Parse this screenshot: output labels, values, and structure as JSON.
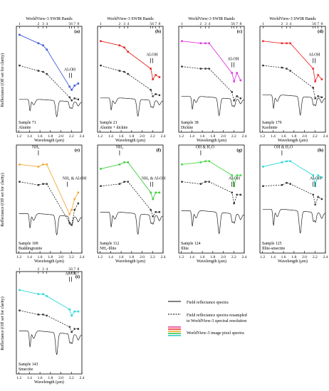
{
  "figure": {
    "ylabel": "Reflectance (Off set for clarity)",
    "xlabel": "Wavelength (μm)",
    "top_axis_title": "WorldView-3 SWIR Bands",
    "x_ticks": [
      "1.2",
      "1.4",
      "1.6",
      "1.8",
      "2.0",
      "2.2",
      "2.4"
    ],
    "band_labels": [
      "1",
      "2",
      "3",
      "4",
      "5",
      "6",
      "7",
      "8"
    ],
    "band_centers": [
      1.21,
      1.57,
      1.66,
      1.73,
      2.165,
      2.205,
      2.26,
      2.33
    ]
  },
  "legend": {
    "field": "Field reflectance spectra",
    "resampled_line1": "Field reflectance spectra resampled",
    "resampled_line2": "to WorldView-3 spectral resolution",
    "pixel": "WorldView-3 image pixel spectra",
    "pixel_colors": [
      "#e8318a",
      "#e82020",
      "#f0a020",
      "#30c030",
      "#20c8c8"
    ]
  },
  "chart_data": [
    {
      "type": "line",
      "panel": "(a)",
      "sample": "Sample 71",
      "mineral": "Alunite",
      "color": "#3f5bd6",
      "annotations": [
        {
          "text": "Al-OH",
          "x": 2.17,
          "marker_x": [
            2.165,
            2.205
          ]
        }
      ],
      "x": [
        1.21,
        1.57,
        1.66,
        1.73,
        2.165,
        2.205,
        2.26,
        2.33
      ],
      "series": [
        {
          "name": "WorldView-3 image pixel spectra",
          "values": [
            0.92,
            0.84,
            0.82,
            0.78,
            0.43,
            0.4,
            0.44,
            0.46
          ]
        },
        {
          "name": "Field reflectance spectra resampled",
          "values": [
            0.63,
            0.58,
            0.57,
            0.55,
            0.33,
            0.3,
            0.32,
            0.31
          ]
        }
      ]
    },
    {
      "type": "line",
      "panel": "(b)",
      "sample": "Sample 21",
      "mineral": "Alunite + dickite",
      "color": "#e02a20",
      "annotations": [
        {
          "text": "Al-OH",
          "x": 2.19,
          "marker_x": [
            2.165,
            2.205
          ]
        }
      ],
      "x": [
        1.21,
        1.57,
        1.66,
        1.73,
        2.165,
        2.205,
        2.26,
        2.33
      ],
      "series": [
        {
          "name": "WorldView-3 image pixel spectra",
          "values": [
            0.86,
            0.82,
            0.8,
            0.76,
            0.6,
            0.5,
            0.54,
            0.52
          ]
        },
        {
          "name": "Field reflectance spectra resampled",
          "values": [
            0.63,
            0.58,
            0.57,
            0.55,
            0.4,
            0.34,
            0.36,
            0.35
          ]
        }
      ]
    },
    {
      "type": "line",
      "panel": "(c)",
      "sample": "Sample 38",
      "mineral": "Dickite",
      "color": "#e03ce0",
      "annotations": [
        {
          "text": "Al-OH",
          "x": 2.19,
          "marker_x": [
            2.165,
            2.205
          ]
        }
      ],
      "x": [
        1.21,
        1.57,
        1.66,
        1.73,
        2.165,
        2.205,
        2.26,
        2.33
      ],
      "series": [
        {
          "name": "WorldView-3 image pixel spectra",
          "values": [
            0.86,
            0.84,
            0.84,
            0.84,
            0.56,
            0.48,
            0.56,
            0.49
          ]
        },
        {
          "name": "Field reflectance spectra resampled",
          "values": [
            0.62,
            0.6,
            0.6,
            0.6,
            0.38,
            0.3,
            0.34,
            0.32
          ]
        }
      ]
    },
    {
      "type": "line",
      "panel": "(d)",
      "sample": "Sample 179",
      "mineral": "Kaolinite",
      "color": "#ee3030",
      "annotations": [
        {
          "text": "Al-OH",
          "x": 2.19,
          "marker_x": [
            2.165,
            2.205
          ]
        }
      ],
      "x": [
        1.21,
        1.57,
        1.66,
        1.73,
        2.165,
        2.205,
        2.26,
        2.33
      ],
      "series": [
        {
          "name": "WorldView-3 image pixel spectra",
          "values": [
            0.86,
            0.84,
            0.84,
            0.84,
            0.6,
            0.48,
            0.54,
            0.5
          ]
        },
        {
          "name": "Field reflectance spectra resampled",
          "values": [
            0.63,
            0.61,
            0.6,
            0.58,
            0.42,
            0.32,
            0.34,
            0.33
          ]
        }
      ]
    },
    {
      "type": "line",
      "panel": "(e)",
      "sample": "Sample 109",
      "mineral": "Buddingtonite",
      "color": "#f2a93a",
      "annotations": [
        {
          "text": "NH₄",
          "x": 1.52,
          "marker_x": [
            1.57
          ]
        },
        {
          "text": "NH₄ & Al-OH",
          "x": 2.26,
          "marker_x": [
            2.12
          ]
        }
      ],
      "x": [
        1.21,
        1.57,
        1.66,
        1.73,
        2.165,
        2.205,
        2.26,
        2.33
      ],
      "series": [
        {
          "name": "WorldView-3 image pixel spectra",
          "values": [
            0.82,
            0.8,
            0.82,
            0.82,
            0.36,
            0.4,
            0.5,
            0.56
          ]
        },
        {
          "name": "Field reflectance spectra resampled",
          "values": [
            0.66,
            0.63,
            0.64,
            0.64,
            0.28,
            0.26,
            0.4,
            0.46
          ]
        }
      ]
    },
    {
      "type": "line",
      "panel": "(f)",
      "sample": "Sample 112",
      "mineral": "NH₄-Illite",
      "color": "#3fcf3f",
      "annotations": [
        {
          "text": "NH₄",
          "x": 1.57,
          "marker_x": [
            1.57
          ]
        },
        {
          "text": "NH₄ & Al-OH",
          "x": 2.22,
          "marker_x": [
            2.165,
            2.205
          ]
        }
      ],
      "x": [
        1.21,
        1.57,
        1.66,
        1.73,
        2.165,
        2.205,
        2.26,
        2.33
      ],
      "series": [
        {
          "name": "WorldView-3 image pixel spectra",
          "values": [
            0.78,
            0.82,
            0.84,
            0.84,
            0.56,
            0.5,
            0.56,
            0.56
          ]
        },
        {
          "name": "Field reflectance spectra resampled",
          "values": [
            0.62,
            0.64,
            0.66,
            0.66,
            0.4,
            0.34,
            0.38,
            0.38
          ]
        }
      ]
    },
    {
      "type": "line",
      "panel": "(g)",
      "sample": "Sample 124",
      "mineral": "Illite",
      "color": "#48d848",
      "annotations": [
        {
          "text": "OH & H₂O",
          "x": 1.65,
          "marker_x": [
            1.57
          ]
        },
        {
          "text": "Al-OH",
          "x": 2.21,
          "marker_x": [
            2.165,
            2.205
          ]
        }
      ],
      "x": [
        1.21,
        1.57,
        1.66,
        1.73,
        2.165,
        2.205,
        2.26,
        2.33
      ],
      "series": [
        {
          "name": "WorldView-3 image pixel spectra",
          "values": [
            0.82,
            0.84,
            0.85,
            0.85,
            0.72,
            0.62,
            0.72,
            0.72
          ]
        },
        {
          "name": "Field reflectance spectra resampled",
          "values": [
            0.66,
            0.64,
            0.66,
            0.66,
            0.56,
            0.46,
            0.54,
            0.54
          ]
        }
      ]
    },
    {
      "type": "line",
      "panel": "(h)",
      "sample": "Sample 125",
      "mineral": "Illite-smectite",
      "color": "#30d8d8",
      "annotations": [
        {
          "text": "OH & H₂O",
          "x": 1.6,
          "marker_x": [
            1.57
          ]
        },
        {
          "text": "Al-OH",
          "x": 2.21,
          "marker_x": [
            2.165,
            2.205
          ]
        }
      ],
      "x": [
        1.21,
        1.57,
        1.66,
        1.73,
        2.165,
        2.205,
        2.26,
        2.33
      ],
      "series": [
        {
          "name": "WorldView-3 image pixel spectra",
          "values": [
            0.8,
            0.84,
            0.85,
            0.85,
            0.72,
            0.62,
            0.72,
            0.7
          ]
        },
        {
          "name": "Field reflectance spectra resampled",
          "values": [
            0.62,
            0.63,
            0.65,
            0.64,
            0.54,
            0.45,
            0.52,
            0.5
          ]
        }
      ]
    },
    {
      "type": "line",
      "panel": "(i)",
      "sample": "Sample 143",
      "mineral": "Smectite",
      "color": "#30d8d8",
      "annotations": [
        {
          "text": "Al-OH",
          "x": 2.19,
          "marker_x": [
            2.165,
            2.205
          ]
        }
      ],
      "x": [
        1.21,
        1.57,
        1.66,
        1.73,
        2.165,
        2.205,
        2.26,
        2.33
      ],
      "series": [
        {
          "name": "WorldView-3 image pixel spectra",
          "values": [
            0.82,
            0.78,
            0.78,
            0.76,
            0.63,
            0.57,
            0.61,
            0.61
          ]
        },
        {
          "name": "Field reflectance spectra resampled",
          "values": [
            0.62,
            0.58,
            0.58,
            0.57,
            0.46,
            0.41,
            0.44,
            0.44
          ]
        }
      ]
    }
  ]
}
